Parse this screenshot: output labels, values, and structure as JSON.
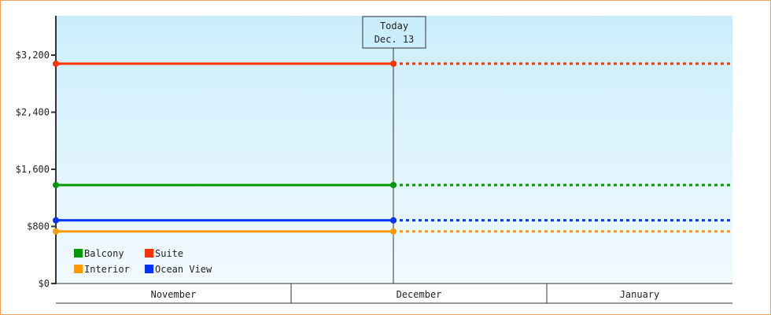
{
  "chart_data": {
    "type": "line",
    "ylim": [
      0,
      3600
    ],
    "yticks": [
      0,
      800,
      1600,
      2400,
      3200
    ],
    "ytick_labels": [
      "$0",
      "$800",
      "$1,600",
      "$2,400",
      "$3,200"
    ],
    "x_categories": [
      "November",
      "December",
      "January"
    ],
    "today_marker": {
      "line1": "Today",
      "line2": "Dec. 13"
    },
    "grid": false,
    "legend_position": "bottom-left",
    "series": [
      {
        "name": "Balcony",
        "color": "#009900",
        "value": 1380
      },
      {
        "name": "Suite",
        "color": "#ff3300",
        "value": 3080
      },
      {
        "name": "Interior",
        "color": "#ff9900",
        "value": 730
      },
      {
        "name": "Ocean View",
        "color": "#0033ff",
        "value": 885
      }
    ],
    "note_style": "solid up to today, dotted after"
  }
}
